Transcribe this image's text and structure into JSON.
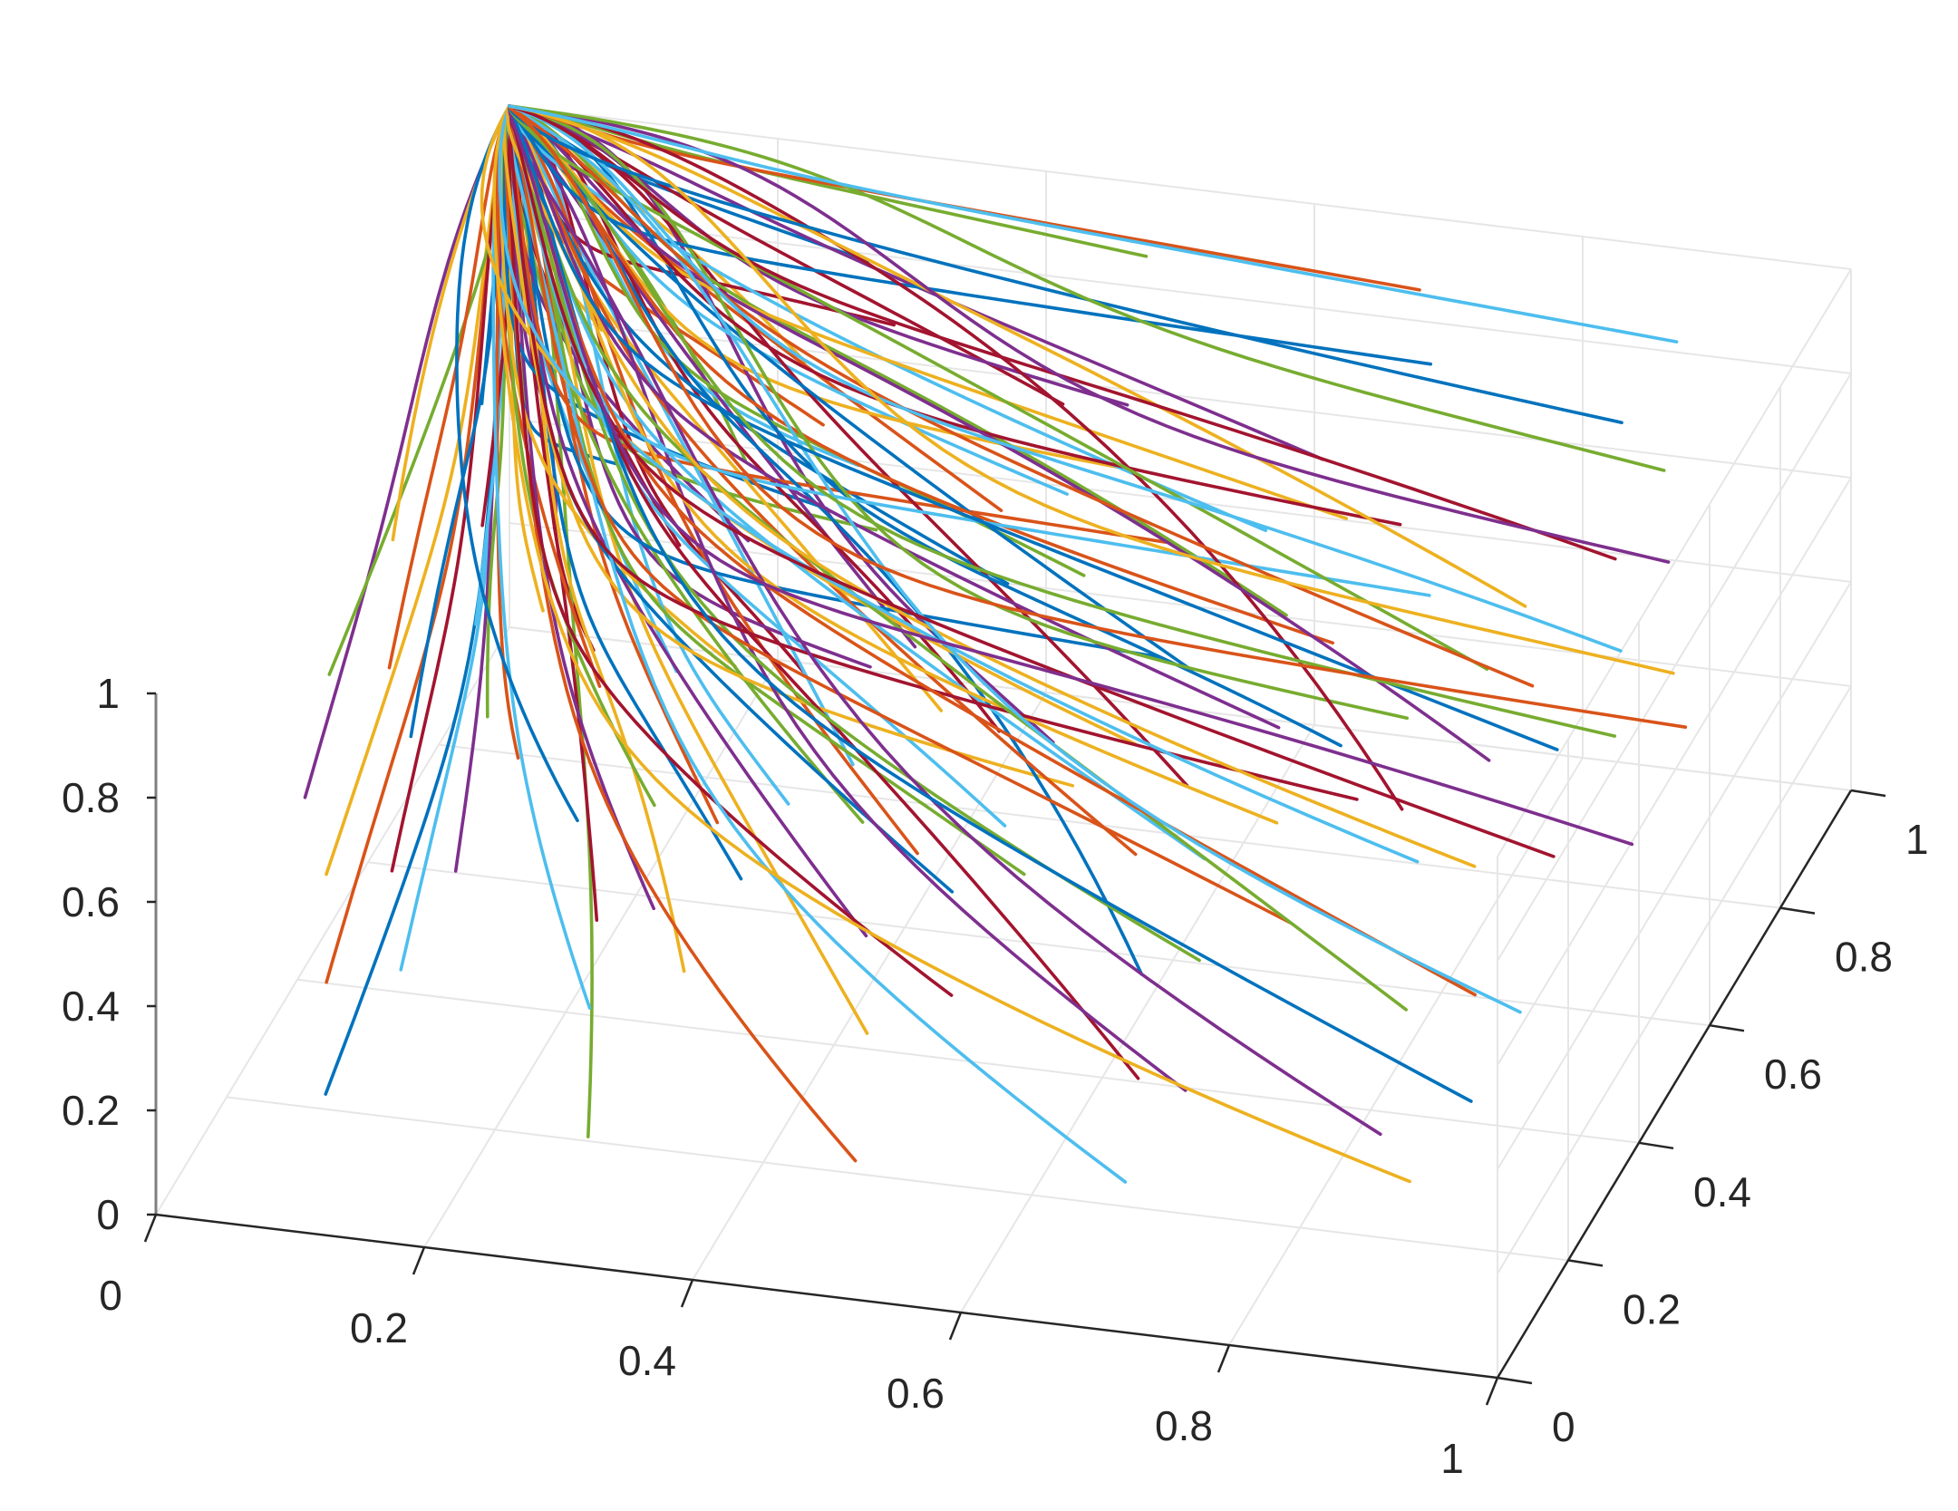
{
  "chart_data": {
    "type": "line",
    "title": "",
    "xlabel": "",
    "ylabel": "",
    "zlabel": "",
    "xlim": [
      0,
      1
    ],
    "ylim": [
      0,
      1
    ],
    "zlim": [
      0,
      1
    ],
    "grid": true,
    "legend": "none",
    "x_ticks": [
      "0",
      "0.2",
      "0.4",
      "0.6",
      "0.8",
      "1"
    ],
    "y_ticks": [
      "0",
      "0.2",
      "0.4",
      "0.6",
      "0.8",
      "1"
    ],
    "z_ticks": [
      "0",
      "0.2",
      "0.4",
      "0.6",
      "0.8",
      "1"
    ],
    "converge_point": {
      "x": 0,
      "y": 1,
      "z": 1
    },
    "colors": [
      "#0072BD",
      "#D95319",
      "#EDB120",
      "#7E2F8E",
      "#77AC30",
      "#4DBEEE",
      "#A2142F"
    ],
    "start_grid": {
      "x": [
        0.1,
        0.3,
        0.5,
        0.7,
        0.9
      ],
      "y": [
        0.1,
        0.3,
        0.5,
        0.7,
        0.9
      ],
      "z": [
        0.2,
        0.4,
        0.6,
        0.8,
        1.0
      ]
    }
  }
}
